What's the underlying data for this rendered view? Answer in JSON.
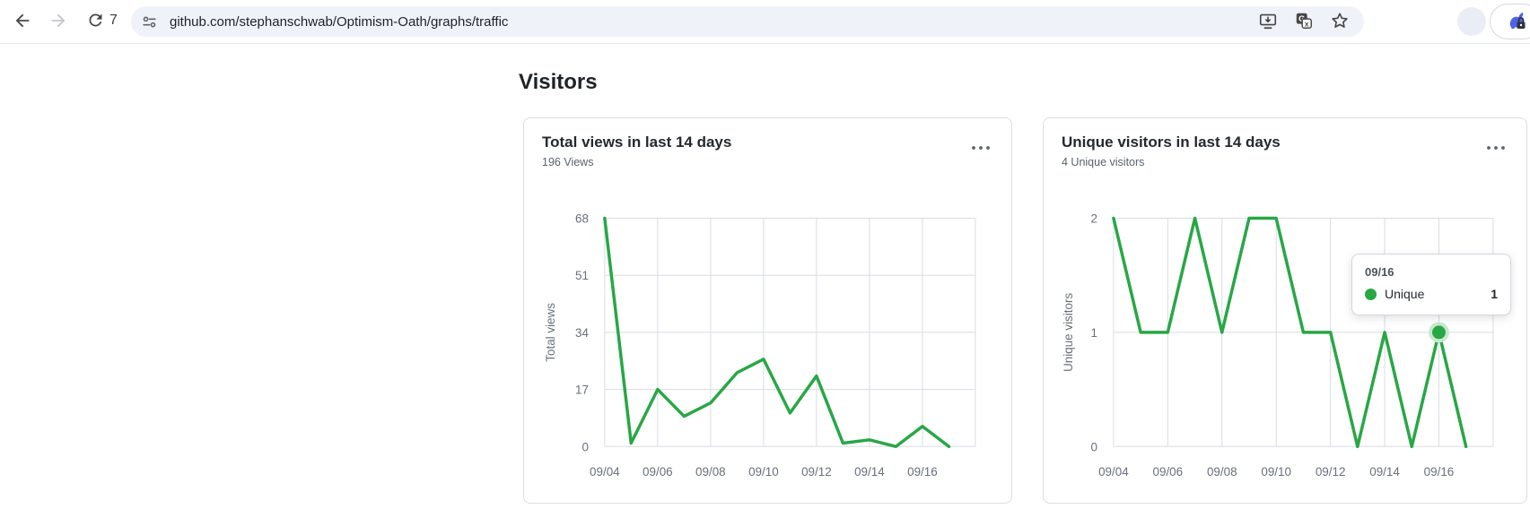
{
  "browser": {
    "url": "github.com/stephanschwab/Optimism-Oath/graphs/traffic",
    "counter": "7",
    "icons": [
      "back-arrow-icon",
      "forward-arrow-icon",
      "reload-icon",
      "site-settings-tune-icon",
      "install-app-icon",
      "translate-icon",
      "bookmark-star-icon",
      "profile-avatar",
      "rabbit-vpn-extension-icon"
    ]
  },
  "page": {
    "heading": "Visitors",
    "cards": [
      {
        "title": "Total views in last 14 days",
        "subtitle": "196 Views",
        "menu_icon": "kebab-horizontal-icon"
      },
      {
        "title": "Unique visitors in last 14 days",
        "subtitle": "4 Unique visitors",
        "menu_icon": "kebab-horizontal-icon",
        "tooltip": {
          "date": "09/16",
          "label": "Unique",
          "value": "1"
        }
      }
    ]
  },
  "chart_data": [
    {
      "type": "line",
      "title": "Total views in last 14 days",
      "x": [
        "09/04",
        "09/05",
        "09/06",
        "09/07",
        "09/08",
        "09/09",
        "09/10",
        "09/11",
        "09/12",
        "09/13",
        "09/14",
        "09/15",
        "09/16",
        "09/17"
      ],
      "values": [
        68,
        1,
        17,
        9,
        13,
        22,
        26,
        10,
        21,
        1,
        2,
        0,
        6,
        0
      ],
      "total_label": "196 Views",
      "xticks": [
        "09/04",
        "09/06",
        "09/08",
        "09/10",
        "09/12",
        "09/14",
        "09/16"
      ],
      "yticks": [
        0,
        17,
        34,
        51,
        68
      ],
      "ylim": [
        0,
        68
      ],
      "x_span_days": 14,
      "xlabel": "",
      "ylabel": "Total views",
      "line_color": "#28a745",
      "grid_color": "#d8dce3",
      "grid": true,
      "legend_position": "none"
    },
    {
      "type": "line",
      "title": "Unique visitors in last 14 days",
      "x": [
        "09/04",
        "09/05",
        "09/06",
        "09/07",
        "09/08",
        "09/09",
        "09/10",
        "09/11",
        "09/12",
        "09/13",
        "09/14",
        "09/15",
        "09/16",
        "09/17"
      ],
      "values": [
        2,
        1,
        1,
        2,
        1,
        2,
        2,
        1,
        1,
        0,
        1,
        0,
        1,
        0
      ],
      "total_label": "4 Unique visitors",
      "xticks": [
        "09/04",
        "09/06",
        "09/08",
        "09/10",
        "09/12",
        "09/14",
        "09/16"
      ],
      "yticks": [
        0,
        1,
        2
      ],
      "ylim": [
        0,
        2
      ],
      "x_span_days": 14,
      "xlabel": "",
      "ylabel": "Unique visitors",
      "line_color": "#28a745",
      "grid_color": "#d8dce3",
      "grid": true,
      "legend_position": "none",
      "marker": {
        "x": "09/16",
        "value": 1,
        "series": "Unique",
        "halo_color": "#c9e7d0"
      }
    }
  ]
}
